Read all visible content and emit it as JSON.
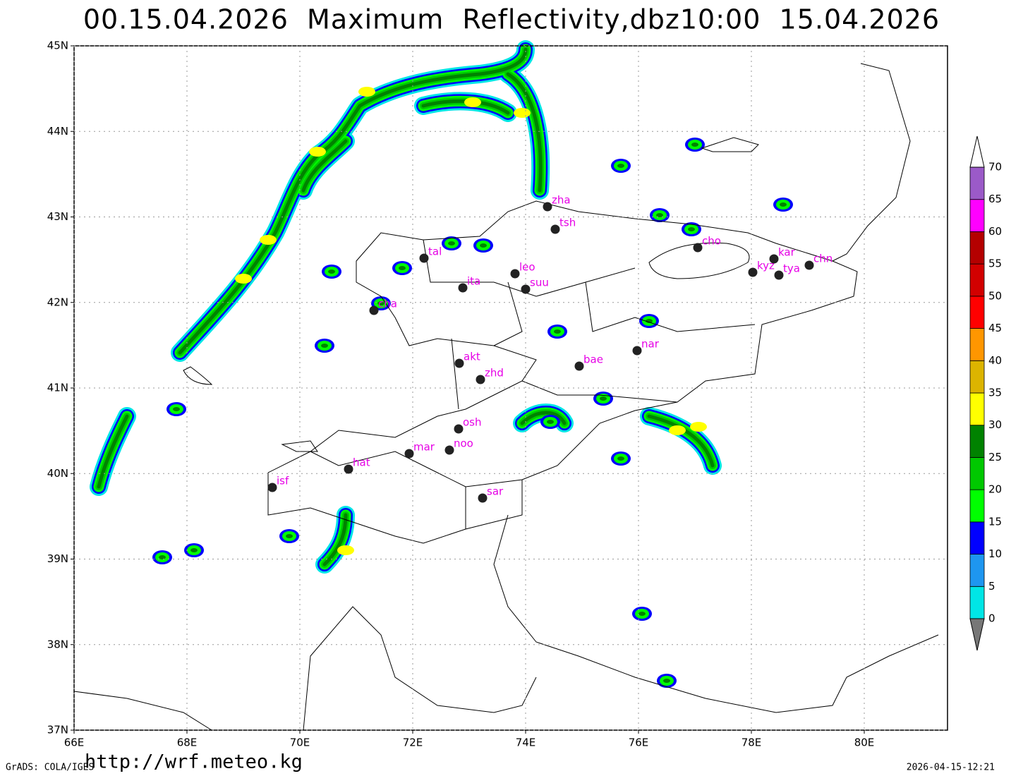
{
  "title": "00.15.04.2026  Maximum  Reflectivity,dbz10:00  15.04.2026",
  "map": {
    "lat_ticks": [
      {
        "value": 45,
        "label": "45N"
      },
      {
        "value": 44,
        "label": "44N"
      },
      {
        "value": 43,
        "label": "43N"
      },
      {
        "value": 42,
        "label": "42N"
      },
      {
        "value": 41,
        "label": "41N"
      },
      {
        "value": 40,
        "label": "40N"
      },
      {
        "value": 39,
        "label": "39N"
      },
      {
        "value": 38,
        "label": "38N"
      },
      {
        "value": 37,
        "label": "37N"
      }
    ],
    "lon_ticks": [
      {
        "value": 66,
        "label": "66E"
      },
      {
        "value": 68,
        "label": "68E"
      },
      {
        "value": 70,
        "label": "70E"
      },
      {
        "value": 72,
        "label": "72E"
      },
      {
        "value": 74,
        "label": "74E"
      },
      {
        "value": 76,
        "label": "76E"
      },
      {
        "value": 78,
        "label": "78E"
      },
      {
        "value": 80,
        "label": "80E"
      }
    ],
    "grid": true
  },
  "stations": [
    "zha",
    "tsh",
    "tal",
    "ita",
    "cha",
    "leo",
    "suu",
    "cho",
    "kyz",
    "kar",
    "tya",
    "chn",
    "nar",
    "bae",
    "akt",
    "zhd",
    "osh",
    "noo",
    "mar",
    "hat",
    "isf",
    "sar"
  ],
  "colorbar": {
    "levels": [
      0,
      5,
      10,
      15,
      20,
      25,
      30,
      35,
      40,
      45,
      50,
      55,
      60,
      65,
      70
    ],
    "colors": [
      "#00e6e6",
      "#1e96f0",
      "#0000ff",
      "#00ff00",
      "#00c800",
      "#008200",
      "#ffff00",
      "#dcb400",
      "#ff9600",
      "#ff0000",
      "#d20000",
      "#b40000",
      "#ff00ff",
      "#9b5ac8"
    ],
    "below_color": "#777777",
    "above_color": "#ffffff"
  },
  "footer": {
    "left": "GrADS: COLA/IGES",
    "url": "http://wrf.meteo.kg",
    "timestamp": "2026-04-15-12:21"
  }
}
